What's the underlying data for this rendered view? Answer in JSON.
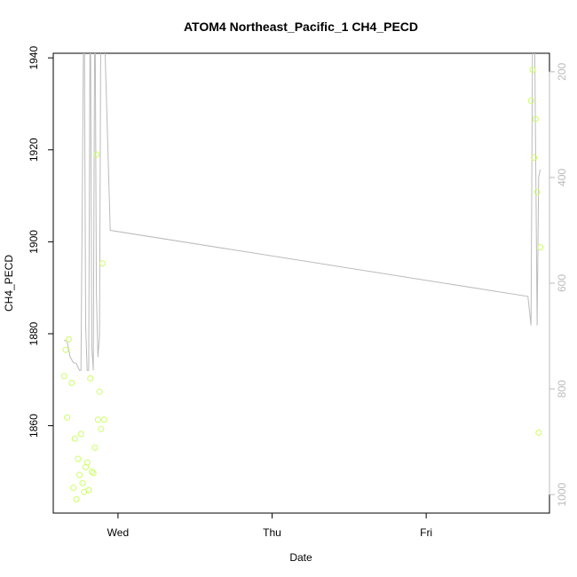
{
  "chart_data": {
    "type": "scatter",
    "title": "ATOM4 Northeast_Pacific_1 CH4_PECD",
    "xlabel": "Date",
    "ylabel": "CH4_PECD",
    "x_ticks": [
      "Wed",
      "Thu",
      "Fri"
    ],
    "xlim_days": [
      -0.42,
      2.8
    ],
    "ylim": [
      1841,
      1941
    ],
    "y_ticks": [
      1860,
      1880,
      1900,
      1920,
      1940
    ],
    "y2_ticks": [
      200,
      400,
      600,
      800,
      1000
    ],
    "y2lim": [
      1035,
      165
    ],
    "y2_inverted": true,
    "grid": false,
    "colors": {
      "points": "#ccff66",
      "line": "#bbbbbb",
      "axis": "#000000",
      "right_axis": "#bbbbbb"
    },
    "series": [
      {
        "kind": "points",
        "points": [
          [
            -0.35,
            1870.8
          ],
          [
            -0.34,
            1876.5
          ],
          [
            -0.33,
            1861.8
          ],
          [
            -0.32,
            1878.8
          ],
          [
            -0.3,
            1869.3
          ],
          [
            -0.29,
            1846.5
          ],
          [
            -0.28,
            1857.2
          ],
          [
            -0.27,
            1844.0
          ],
          [
            -0.26,
            1852.8
          ],
          [
            -0.25,
            1849.3
          ],
          [
            -0.24,
            1858.2
          ],
          [
            -0.23,
            1847.5
          ],
          [
            -0.22,
            1845.6
          ],
          [
            -0.21,
            1851.0
          ],
          [
            -0.2,
            1852.0
          ],
          [
            -0.19,
            1846.0
          ],
          [
            -0.18,
            1870.3
          ],
          [
            -0.17,
            1850.0
          ],
          [
            -0.16,
            1849.7
          ],
          [
            -0.15,
            1855.2
          ],
          [
            -0.14,
            1919.0
          ],
          [
            -0.13,
            1861.3
          ],
          [
            -0.12,
            1867.4
          ],
          [
            -0.11,
            1859.3
          ],
          [
            -0.1,
            1895.3
          ],
          [
            -0.09,
            1861.3
          ],
          [
            2.68,
            1930.7
          ],
          [
            2.69,
            1937.4
          ],
          [
            2.7,
            1918.3
          ],
          [
            2.71,
            1926.7
          ],
          [
            2.72,
            1910.8
          ],
          [
            2.73,
            1858.5
          ],
          [
            2.74,
            1898.8
          ]
        ]
      },
      {
        "kind": "line",
        "axis": "right",
        "points": [
          [
            -0.35,
            708
          ],
          [
            -0.33,
            710
          ],
          [
            -0.31,
            740
          ],
          [
            -0.29,
            750
          ],
          [
            -0.27,
            752
          ],
          [
            -0.25,
            765
          ],
          [
            -0.24,
            765
          ],
          [
            -0.22,
            0
          ],
          [
            -0.21,
            680
          ],
          [
            -0.2,
            765
          ],
          [
            -0.19,
            765
          ],
          [
            -0.18,
            0
          ],
          [
            -0.17,
            720
          ],
          [
            -0.16,
            765
          ],
          [
            -0.15,
            0
          ],
          [
            -0.14,
            620
          ],
          [
            -0.13,
            740
          ],
          [
            -0.12,
            700
          ],
          [
            -0.11,
            0
          ],
          [
            -0.1,
            0
          ],
          [
            -0.05,
            500
          ],
          [
            2.66,
            625
          ],
          [
            2.68,
            680
          ],
          [
            2.69,
            140
          ],
          [
            2.7,
            0
          ],
          [
            2.72,
            680
          ],
          [
            2.73,
            400
          ],
          [
            2.74,
            385
          ]
        ]
      }
    ]
  }
}
